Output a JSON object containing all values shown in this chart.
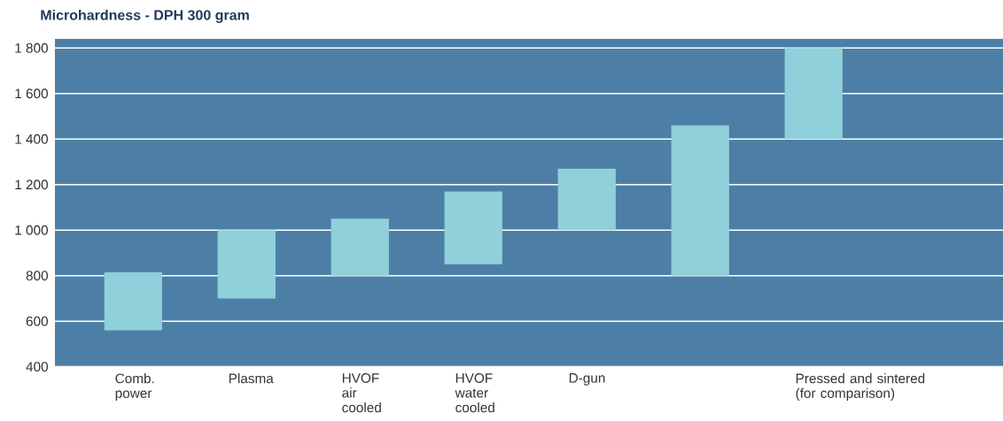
{
  "chart_data": {
    "type": "bar",
    "title": "Microhardness - DPH 300 gram",
    "categories": [
      "Comb. power",
      "Plasma",
      "HVOF air cooled",
      "HVOF water cooled",
      "D-gun",
      null,
      "Pressed and sintered (for comparison)"
    ],
    "base": [
      560,
      700,
      800,
      850,
      1000,
      800,
      1400
    ],
    "values": [
      255,
      300,
      250,
      320,
      270,
      660,
      400
    ],
    "color": "#8fd0da",
    "ylim": [
      400,
      1840
    ],
    "yticks": [
      {
        "value": 400,
        "label": "400"
      },
      {
        "value": 600,
        "label": "600"
      },
      {
        "value": 800,
        "label": "800"
      },
      {
        "value": 1000,
        "label": "1 000"
      },
      {
        "value": 1200,
        "label": "1 200"
      },
      {
        "value": 1400,
        "label": "1 400"
      },
      {
        "value": 1600,
        "label": "1 600"
      },
      {
        "value": 1800,
        "label": "1 800"
      }
    ],
    "grid": "y"
  }
}
